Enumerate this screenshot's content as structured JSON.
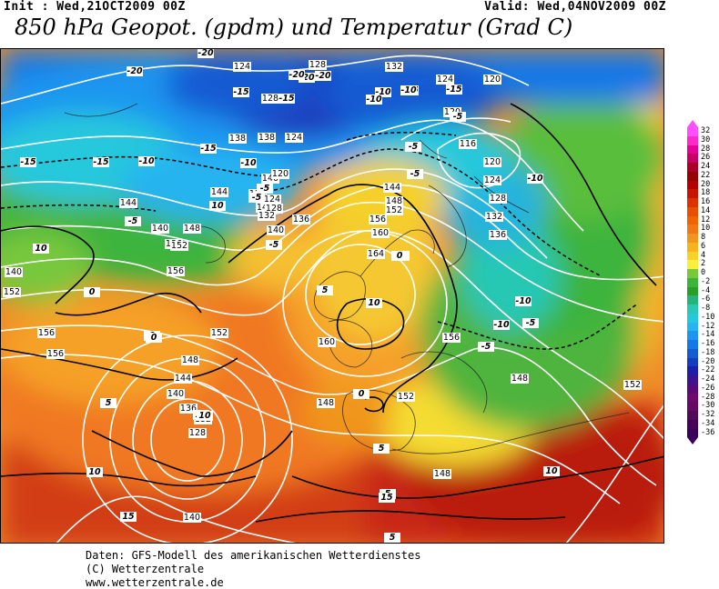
{
  "header": {
    "init": "Init : Wed,21OCT2009 00Z",
    "valid": "Valid: Wed,04NOV2009 00Z",
    "title": "850 hPa Geopot. (gpdm) und Temperatur (Grad C)"
  },
  "credits": {
    "line1": "Daten: GFS-Modell des amerikanischen Wetterdienstes",
    "line2": "(C) Wetterzentrale",
    "line3": "www.wetterzentrale.de"
  },
  "legend": {
    "labels": [
      "32",
      "30",
      "28",
      "26",
      "24",
      "22",
      "20",
      "18",
      "16",
      "14",
      "12",
      "10",
      "8",
      "6",
      "4",
      "2",
      "0",
      "-2",
      "-4",
      "-6",
      "-8",
      "-10",
      "-12",
      "-14",
      "-16",
      "-18",
      "-20",
      "-22",
      "-24",
      "-26",
      "-28",
      "-30",
      "-32",
      "-34",
      "-36"
    ],
    "colors": [
      "#ff50ff",
      "#ff28c8",
      "#e60096",
      "#c80064",
      "#aa0028",
      "#960000",
      "#b40000",
      "#c81400",
      "#dc3200",
      "#e65000",
      "#f06400",
      "#f07814",
      "#f0961e",
      "#f5b41e",
      "#f5d228",
      "#faf03c",
      "#78c83c",
      "#3cb43c",
      "#28a028",
      "#28b478",
      "#28c8b4",
      "#28c8dc",
      "#28b4f0",
      "#1e96f0",
      "#1478e6",
      "#145ad2",
      "#143cbe",
      "#1e1eaa",
      "#3c148c",
      "#5a0a78",
      "#6e0a6e",
      "#640a64",
      "#500a5a",
      "#46005a",
      "#3c005a"
    ]
  },
  "map_labels": {
    "geopotential": [
      "124",
      "128",
      "132",
      "124",
      "120",
      "120",
      "116",
      "120",
      "124",
      "128",
      "132",
      "136",
      "140",
      "144",
      "148",
      "138",
      "124",
      "120",
      "124",
      "128",
      "132",
      "136",
      "140",
      "144",
      "148",
      "152",
      "156",
      "160",
      "164",
      "136",
      "140",
      "148",
      "152",
      "156",
      "152",
      "156",
      "156",
      "148",
      "144",
      "140",
      "136",
      "132",
      "128",
      "140",
      "160",
      "156",
      "148",
      "152",
      "148",
      "148",
      "152",
      "152",
      "140",
      "144",
      "128",
      "138",
      "120"
    ],
    "temperature": [
      "-20",
      "-20",
      "-15",
      "-20",
      "-20",
      "-20",
      "-15",
      "-10",
      "-15",
      "-15",
      "-10",
      "-15",
      "-10",
      "-15",
      "-15",
      "-10",
      "-5",
      "-5",
      "-10",
      "-10",
      "-5",
      "-5",
      "-10",
      "-5",
      "-5",
      "-10",
      "-5",
      "-5",
      "0",
      "0",
      "5",
      "5",
      "10",
      "10",
      "10",
      "10",
      "5",
      "0",
      "0",
      "5",
      "5",
      "10",
      "15",
      "15",
      "10",
      "5",
      "10",
      "0",
      "-5"
    ]
  }
}
